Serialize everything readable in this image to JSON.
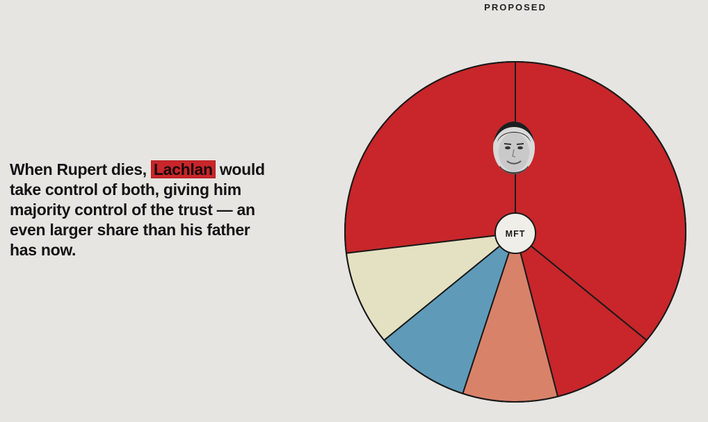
{
  "chart_data": {
    "type": "pie",
    "title": "PROPOSED",
    "center_label": "MFT",
    "slices": [
      {
        "value": 36,
        "color": "#c8262a"
      },
      {
        "value": 10,
        "color": "#c8262a"
      },
      {
        "value": 9,
        "color": "#d9826a"
      },
      {
        "value": 9,
        "color": "#5f9bb9"
      },
      {
        "value": 9,
        "color": "#e4e1c3"
      },
      {
        "value": 27,
        "color": "#c8262a"
      }
    ],
    "avatar_icon": "face-portrait-icon"
  },
  "text": {
    "before": "When Rupert dies, ",
    "highlight": "Lachlan",
    "after": " would take control of both, giving him majority control of the trust — an even larger share than his father has now."
  }
}
